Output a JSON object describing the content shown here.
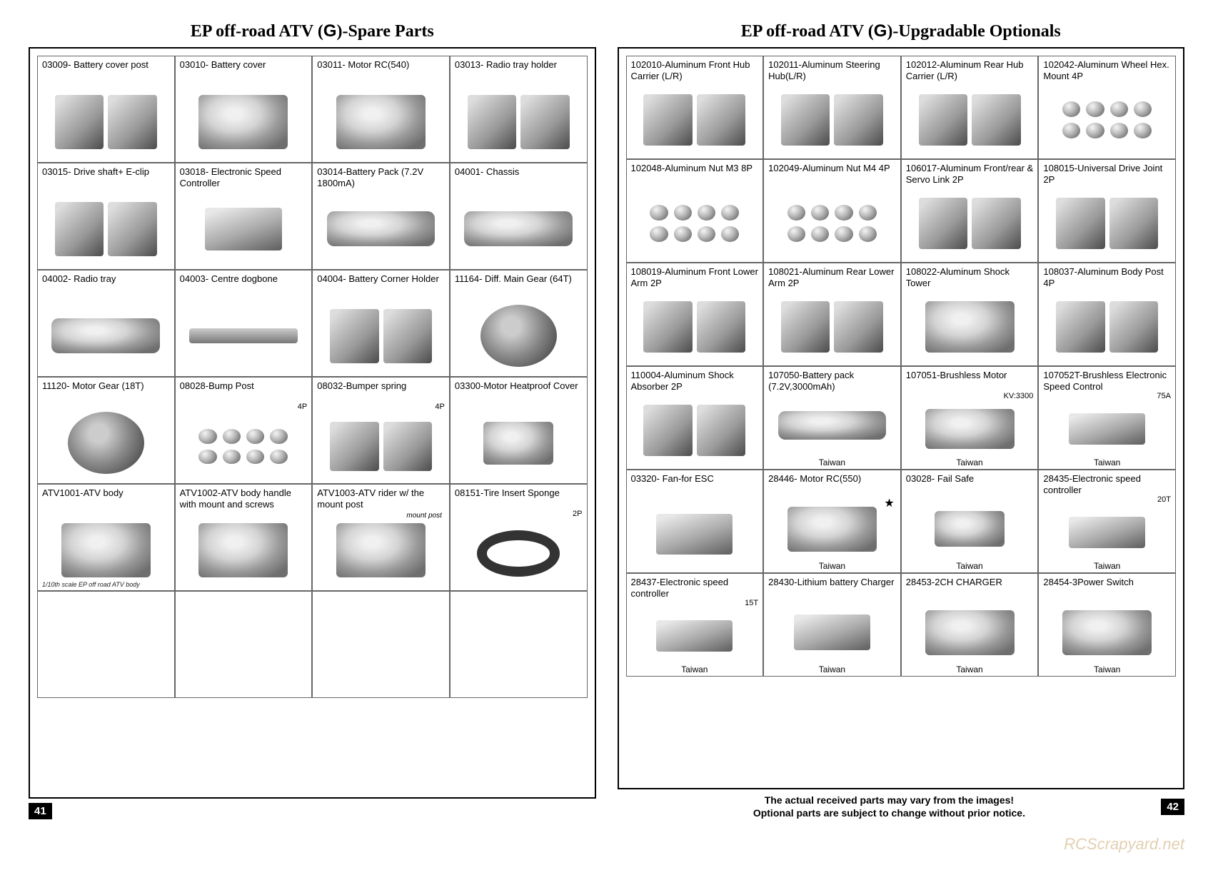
{
  "left": {
    "title_pre": "EP off-road ATV (",
    "title_g": "G",
    "title_post": ")-Spare Parts",
    "page_number": "41",
    "rows": [
      [
        {
          "label": "03009- Battery cover post",
          "shape": "twin"
        },
        {
          "label": "03010- Battery cover",
          "shape": "ph"
        },
        {
          "label": "03011- Motor RC(540)",
          "shape": "ph"
        },
        {
          "label": "03013- Radio tray holder",
          "shape": "twin"
        }
      ],
      [
        {
          "label": "03015- Drive shaft+ E-clip",
          "shape": "twin"
        },
        {
          "label": "03018- Electronic Speed Controller",
          "shape": "box"
        },
        {
          "label": "03014-Battery Pack (7.2V 1800mA)",
          "shape": "wide"
        },
        {
          "label": "04001- Chassis",
          "shape": "wide"
        }
      ],
      [
        {
          "label": "04002- Radio tray",
          "shape": "wide"
        },
        {
          "label": "04003- Centre dogbone",
          "shape": "bar"
        },
        {
          "label": "04004- Battery Corner Holder",
          "shape": "twin"
        },
        {
          "label": "11164- Diff. Main Gear (64T)",
          "shape": "gear"
        }
      ],
      [
        {
          "label": "11120- Motor Gear (18T)",
          "shape": "gear"
        },
        {
          "label": "08028-Bump Post",
          "sub": "4P",
          "shape": "dots"
        },
        {
          "label": "08032-Bumper spring",
          "sub": "4P",
          "shape": "twin"
        },
        {
          "label": "03300-Motor Heatproof Cover",
          "shape": "ph-small"
        }
      ],
      [
        {
          "label": "ATV1001-ATV body",
          "note": "1/10th scale EP off road ATV body",
          "shape": "ph"
        },
        {
          "label": "ATV1002-ATV body handle with mount and screws",
          "shape": "ph"
        },
        {
          "label": "ATV1003-ATV rider w/ the mount post",
          "mount": "mount post",
          "shape": "ph"
        },
        {
          "label": "08151-Tire Insert Sponge",
          "sub": "2P",
          "shape": "ring"
        }
      ],
      [
        {
          "label": "",
          "shape": "none"
        },
        {
          "label": "",
          "shape": "none"
        },
        {
          "label": "",
          "shape": "none"
        },
        {
          "label": "",
          "shape": "none"
        }
      ]
    ]
  },
  "right": {
    "title_pre": "EP off-road ATV (",
    "title_g": "G",
    "title_post": ")-Upgradable Optionals",
    "page_number": "42",
    "disclaimer1": "The actual received parts may vary from the images!",
    "disclaimer2": "Optional parts are subject to change without prior notice.",
    "rows": [
      [
        {
          "label": "102010-Aluminum Front Hub Carrier (L/R)",
          "shape": "twin"
        },
        {
          "label": "102011-Aluminum Steering Hub(L/R)",
          "shape": "twin"
        },
        {
          "label": "102012-Aluminum Rear Hub Carrier (L/R)",
          "shape": "twin"
        },
        {
          "label": "102042-Aluminum Wheel Hex. Mount 4P",
          "shape": "dots"
        }
      ],
      [
        {
          "label": "102048-Aluminum Nut M3        8P",
          "shape": "dots"
        },
        {
          "label": "102049-Aluminum Nut M4        4P",
          "shape": "dots"
        },
        {
          "label": "106017-Aluminum Front/rear & Servo Link            2P",
          "shape": "twin"
        },
        {
          "label": "108015-Universal Drive Joint   2P",
          "shape": "twin"
        }
      ],
      [
        {
          "label": "108019-Aluminum Front Lower Arm 2P",
          "shape": "twin"
        },
        {
          "label": "108021-Aluminum Rear Lower Arm 2P",
          "shape": "twin"
        },
        {
          "label": "108022-Aluminum Shock Tower",
          "shape": "ph"
        },
        {
          "label": "108037-Aluminum Body Post      4P",
          "shape": "twin"
        }
      ],
      [
        {
          "label": "110004-Aluminum Shock Absorber 2P",
          "shape": "twin"
        },
        {
          "label": "107050-Battery pack (7.2V,3000mAh)",
          "shape": "wide",
          "footer": "Taiwan"
        },
        {
          "label": "107051-Brushless Motor",
          "sub": "KV:3300",
          "shape": "ph",
          "footer": "Taiwan"
        },
        {
          "label": "107052T-Brushless Electronic Speed Control",
          "sub": "75A",
          "shape": "box",
          "footer": "Taiwan"
        }
      ],
      [
        {
          "label": "03320- Fan-for ESC",
          "shape": "box"
        },
        {
          "label": "28446- Motor RC(550)",
          "star": "★",
          "shape": "ph",
          "footer": "Taiwan"
        },
        {
          "label": "03028- Fail Safe",
          "shape": "ph-small",
          "footer": "Taiwan"
        },
        {
          "label": "28435-Electronic speed controller",
          "sub": "20T",
          "shape": "box",
          "footer": "Taiwan"
        }
      ],
      [
        {
          "label": "28437-Electronic speed controller",
          "sub": "15T",
          "shape": "box",
          "footer": "Taiwan"
        },
        {
          "label": "28430-Lithium battery Charger",
          "shape": "box",
          "footer": "Taiwan"
        },
        {
          "label": "28453-2CH CHARGER",
          "shape": "ph",
          "footer": "Taiwan"
        },
        {
          "label": "28454-3Power Switch",
          "shape": "ph",
          "footer": "Taiwan"
        }
      ]
    ]
  },
  "watermark": "RCScrapyard.net"
}
